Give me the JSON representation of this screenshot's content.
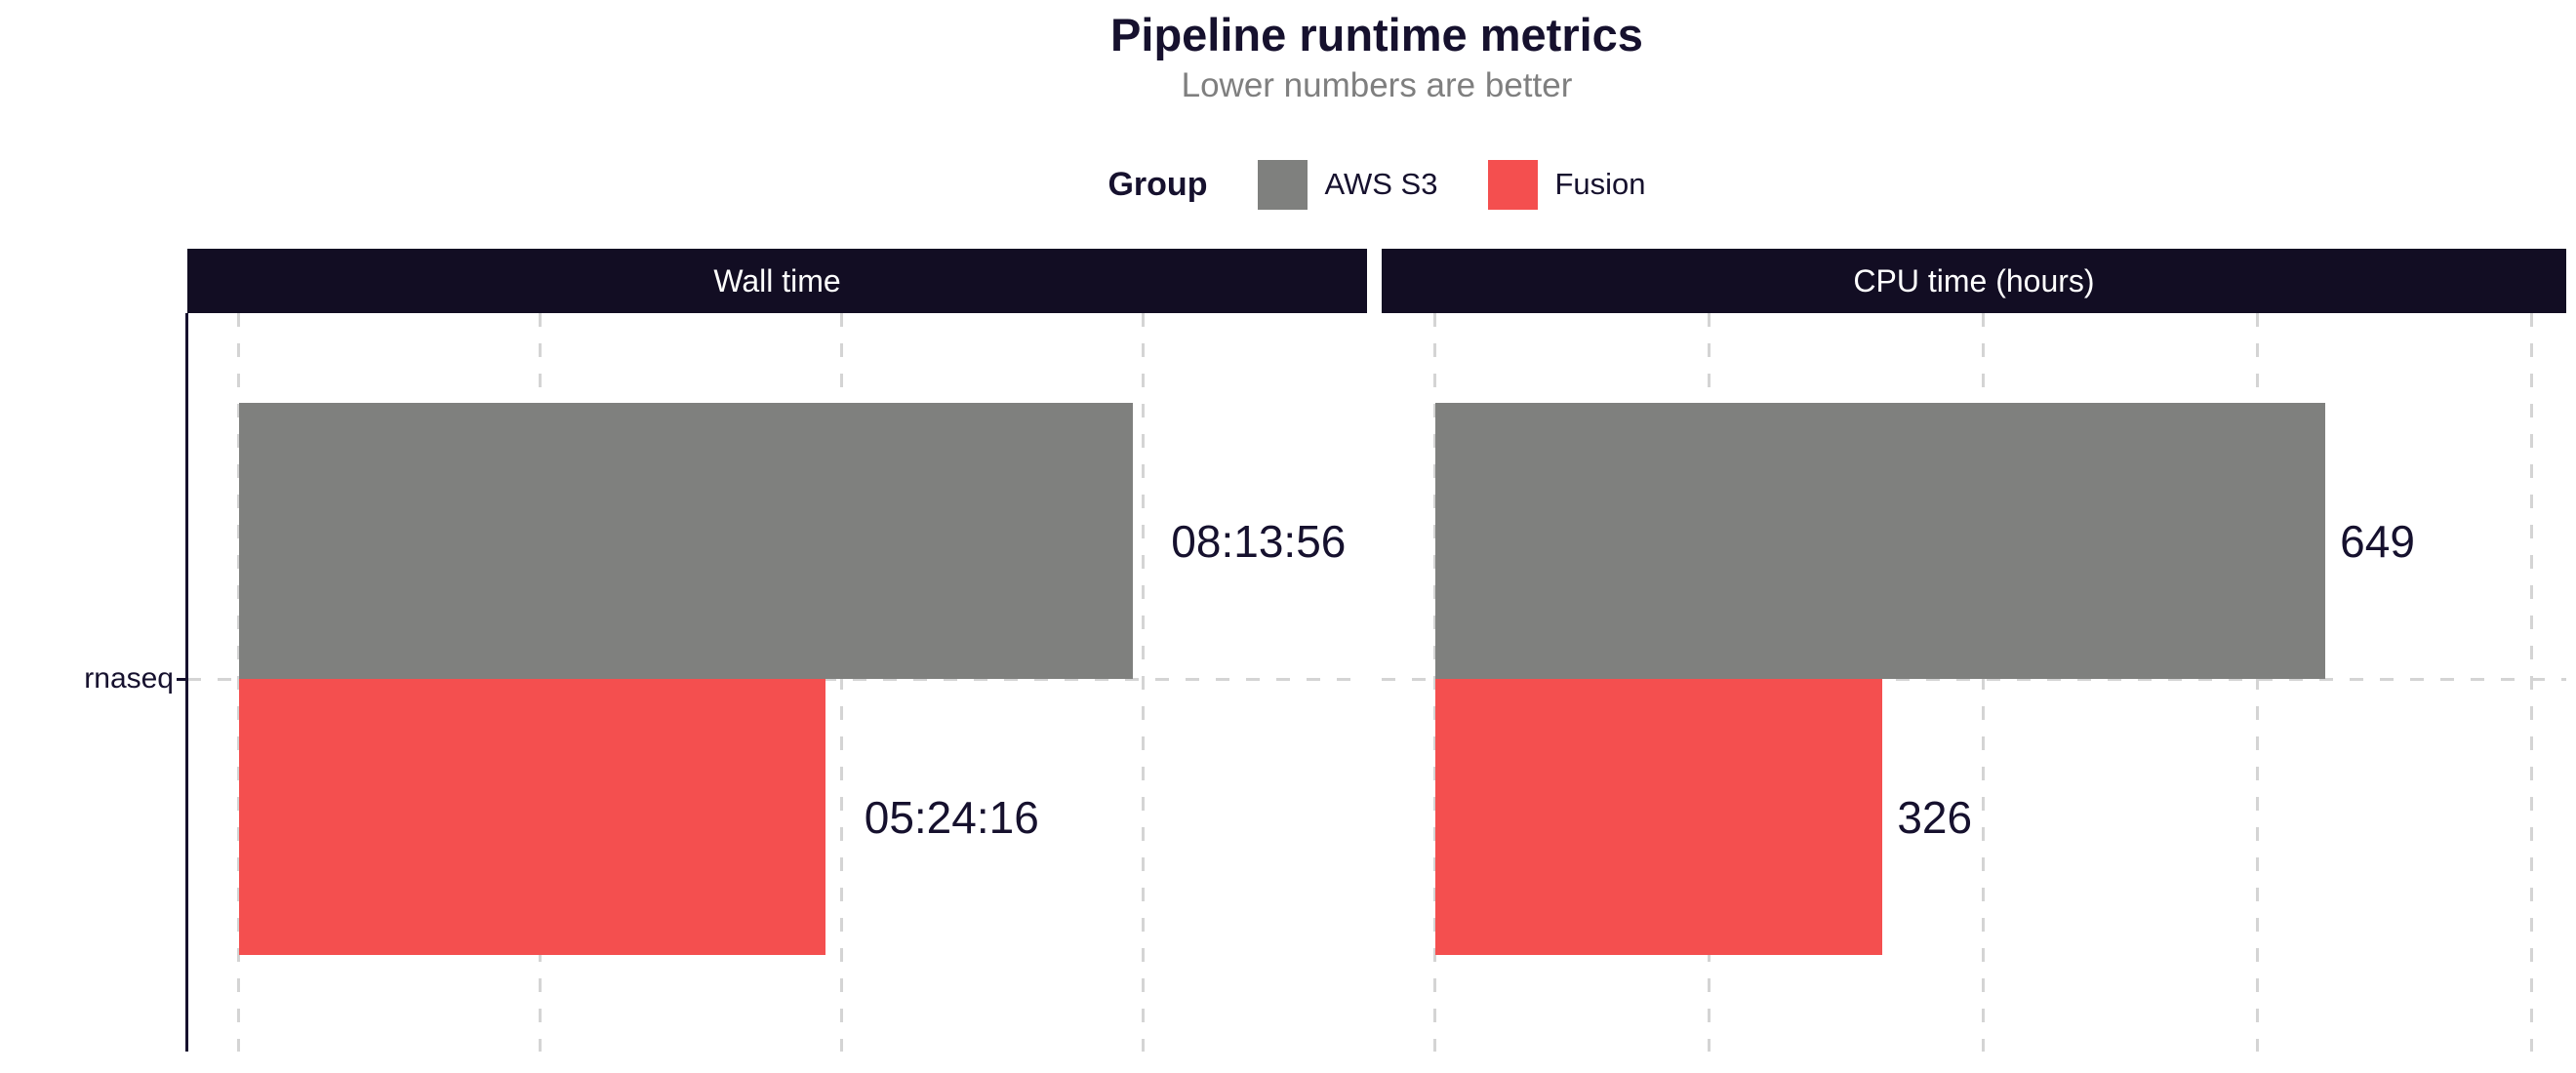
{
  "header": {
    "title": "Pipeline runtime metrics",
    "subtitle": "Lower numbers are better"
  },
  "legend": {
    "title": "Group",
    "position": "top",
    "items": [
      {
        "label": "AWS S3",
        "color": "#7f807e"
      },
      {
        "label": "Fusion",
        "color": "#f44f4f"
      }
    ]
  },
  "y_axis": {
    "category": "rnaseq"
  },
  "colors": {
    "bar_gray": "#7f807e",
    "bar_red": "#f44f4f",
    "strip_bg": "#120d23",
    "strip_text": "#ffffff",
    "dark_text": "#16112e",
    "subtitle_gray": "#7f7f7f",
    "gridline": "#d4d4d4",
    "background": "#ffffff"
  },
  "chart_data": {
    "type": "bar",
    "orientation": "horizontal",
    "title": "Pipeline runtime metrics",
    "subtitle": "Lower numbers are better",
    "legend_title": "Group",
    "legend_position": "top",
    "grid": "dashed-vertical-and-category-line",
    "categories": [
      "rnaseq"
    ],
    "groups": [
      "AWS S3",
      "Fusion"
    ],
    "panels": [
      {
        "title": "Wall time",
        "unit": "seconds",
        "xlim": [
          -1715,
          37411
        ],
        "gridline_values": [
          0,
          10000,
          20000,
          30000
        ],
        "label_nudge": 1280,
        "bars": [
          {
            "category": "rnaseq",
            "group": "AWS S3",
            "value": 29636,
            "label": "08:13:56"
          },
          {
            "category": "rnaseq",
            "group": "Fusion",
            "value": 19456,
            "label": "05:24:16"
          }
        ]
      },
      {
        "title": "CPU time (hours)",
        "unit": "hours",
        "xlim": [
          -39,
          825
        ],
        "gridline_values": [
          0,
          200,
          400,
          600,
          800
        ],
        "label_nudge": 11,
        "bars": [
          {
            "category": "rnaseq",
            "group": "AWS S3",
            "value": 649,
            "label": "649"
          },
          {
            "category": "rnaseq",
            "group": "Fusion",
            "value": 326,
            "label": "326"
          }
        ]
      }
    ]
  }
}
